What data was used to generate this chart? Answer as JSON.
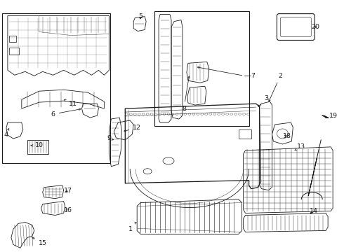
{
  "background_color": "#ffffff",
  "line_color": "#1a1a1a",
  "figsize": [
    4.9,
    3.6
  ],
  "dpi": 100,
  "labels": {
    "1": [
      203,
      321,
      196,
      327
    ],
    "2": [
      358,
      108,
      368,
      108
    ],
    "3": [
      370,
      138,
      360,
      143
    ],
    "4": [
      10,
      193,
      22,
      196
    ],
    "5": [
      193,
      27,
      200,
      33
    ],
    "6": [
      75,
      163,
      84,
      168
    ],
    "7": [
      349,
      108,
      350,
      118
    ],
    "8": [
      258,
      155,
      265,
      161
    ],
    "9": [
      162,
      200,
      172,
      203
    ],
    "10": [
      55,
      208,
      62,
      212
    ],
    "11": [
      103,
      148,
      113,
      153
    ],
    "12": [
      195,
      183,
      204,
      186
    ],
    "13": [
      418,
      213,
      426,
      217
    ],
    "14": [
      432,
      298,
      440,
      302
    ],
    "15": [
      55,
      330,
      62,
      334
    ],
    "16": [
      83,
      288,
      91,
      291
    ],
    "17": [
      83,
      272,
      91,
      275
    ],
    "18": [
      393,
      190,
      402,
      195
    ],
    "19": [
      462,
      165,
      470,
      171
    ],
    "20": [
      440,
      35,
      449,
      40
    ]
  }
}
